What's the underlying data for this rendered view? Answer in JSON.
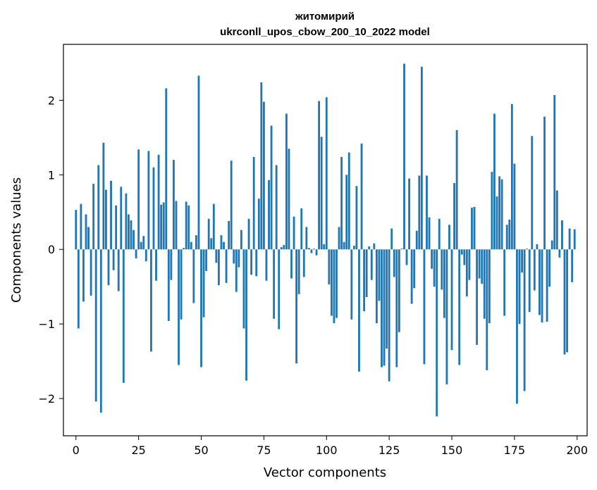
{
  "chart_data": {
    "type": "bar",
    "title": "житомирий",
    "subtitle": "ukrconll_upos_cbow_200_10_2022 model",
    "xlabel": "Vector components",
    "ylabel": "Components values",
    "xlim": [
      -5,
      204
    ],
    "ylim": [
      -2.5,
      2.75
    ],
    "xticks": [
      0,
      25,
      50,
      75,
      100,
      125,
      150,
      175,
      200
    ],
    "xtick_labels": [
      "0",
      "25",
      "50",
      "75",
      "100",
      "125",
      "150",
      "175",
      "200"
    ],
    "yticks": [
      -2,
      -1,
      0,
      1,
      2
    ],
    "ytick_labels": [
      "−2",
      "−1",
      "0",
      "1",
      "2"
    ],
    "grid": false,
    "bar_color": "#1f77b4",
    "x": [
      0,
      1,
      2,
      3,
      4,
      5,
      6,
      7,
      8,
      9,
      10,
      11,
      12,
      13,
      14,
      15,
      16,
      17,
      18,
      19,
      20,
      21,
      22,
      23,
      24,
      25,
      26,
      27,
      28,
      29,
      30,
      31,
      32,
      33,
      34,
      35,
      36,
      37,
      38,
      39,
      40,
      41,
      42,
      43,
      44,
      45,
      46,
      47,
      48,
      49,
      50,
      51,
      52,
      53,
      54,
      55,
      56,
      57,
      58,
      59,
      60,
      61,
      62,
      63,
      64,
      65,
      66,
      67,
      68,
      69,
      70,
      71,
      72,
      73,
      74,
      75,
      76,
      77,
      78,
      79,
      80,
      81,
      82,
      83,
      84,
      85,
      86,
      87,
      88,
      89,
      90,
      91,
      92,
      93,
      94,
      95,
      96,
      97,
      98,
      99,
      100,
      101,
      102,
      103,
      104,
      105,
      106,
      107,
      108,
      109,
      110,
      111,
      112,
      113,
      114,
      115,
      116,
      117,
      118,
      119,
      120,
      121,
      122,
      123,
      124,
      125,
      126,
      127,
      128,
      129,
      130,
      131,
      132,
      133,
      134,
      135,
      136,
      137,
      138,
      139,
      140,
      141,
      142,
      143,
      144,
      145,
      146,
      147,
      148,
      149,
      150,
      151,
      152,
      153,
      154,
      155,
      156,
      157,
      158,
      159,
      160,
      161,
      162,
      163,
      164,
      165,
      166,
      167,
      168,
      169,
      170,
      171,
      172,
      173,
      174,
      175,
      176,
      177,
      178,
      179,
      180,
      181,
      182,
      183,
      184,
      185,
      186,
      187,
      188,
      189,
      190,
      191,
      192,
      193,
      194,
      195,
      196,
      197,
      198,
      199
    ],
    "values": [
      0.53,
      -1.06,
      0.61,
      -0.7,
      0.47,
      0.3,
      -0.62,
      0.88,
      -2.04,
      1.13,
      -2.19,
      1.43,
      0.8,
      -0.48,
      0.92,
      -0.28,
      0.59,
      -0.56,
      0.84,
      -1.79,
      0.75,
      0.47,
      0.39,
      0.26,
      -0.12,
      1.34,
      0.1,
      0.18,
      -0.16,
      1.32,
      -1.37,
      1.1,
      -0.42,
      1.27,
      0.6,
      0.63,
      2.16,
      -0.96,
      -0.41,
      1.2,
      0.65,
      -1.55,
      -0.94,
      0.02,
      0.64,
      0.59,
      0.1,
      -0.72,
      0.19,
      2.33,
      -1.58,
      -0.91,
      -0.29,
      0.41,
      0.15,
      0.61,
      -0.18,
      -0.48,
      0.19,
      0.1,
      -0.45,
      0.38,
      1.19,
      -0.19,
      -0.57,
      -0.24,
      0.26,
      -1.06,
      -1.76,
      0.41,
      -0.34,
      1.24,
      -0.36,
      0.68,
      2.24,
      1.98,
      -0.42,
      0.93,
      1.66,
      -0.93,
      1.13,
      -1.07,
      0.03,
      0.06,
      1.82,
      1.35,
      -0.39,
      0.44,
      -1.53,
      -0.6,
      0.55,
      -0.37,
      0.3,
      0.02,
      -0.05,
      0.01,
      -0.08,
      1.99,
      1.51,
      0.07,
      2.04,
      -0.47,
      -0.89,
      -0.99,
      -0.92,
      0.3,
      1.24,
      0.1,
      1.0,
      1.3,
      -0.94,
      0.05,
      0.85,
      -1.64,
      1.42,
      -0.83,
      -0.64,
      0.04,
      -0.41,
      0.08,
      -0.99,
      -0.69,
      -1.58,
      -1.56,
      -1.33,
      -1.77,
      0.28,
      -0.37,
      -1.58,
      -1.11,
      0.01,
      2.49,
      -0.21,
      0.95,
      -0.73,
      -0.52,
      0.25,
      0.99,
      2.45,
      -1.54,
      0.99,
      0.43,
      -0.26,
      -0.5,
      -2.24,
      0.41,
      -0.54,
      -0.92,
      -1.81,
      0.33,
      -1.35,
      0.89,
      1.6,
      -1.55,
      -0.07,
      -0.21,
      -0.63,
      -0.41,
      0.56,
      0.57,
      -1.28,
      -0.39,
      -0.46,
      -0.93,
      -1.62,
      -0.99,
      1.04,
      1.82,
      0.71,
      0.98,
      0.94,
      -0.89,
      0.33,
      0.4,
      1.95,
      1.15,
      -2.07,
      -1.0,
      -0.31,
      -1.9,
      0.01,
      -0.84,
      1.52,
      -0.55,
      0.07,
      -0.88,
      -0.98,
      1.78,
      -0.97,
      -0.5,
      0.12,
      2.07,
      0.79,
      -0.11,
      0.39,
      -1.41,
      -1.38,
      0.28,
      -0.44,
      0.27
    ]
  }
}
